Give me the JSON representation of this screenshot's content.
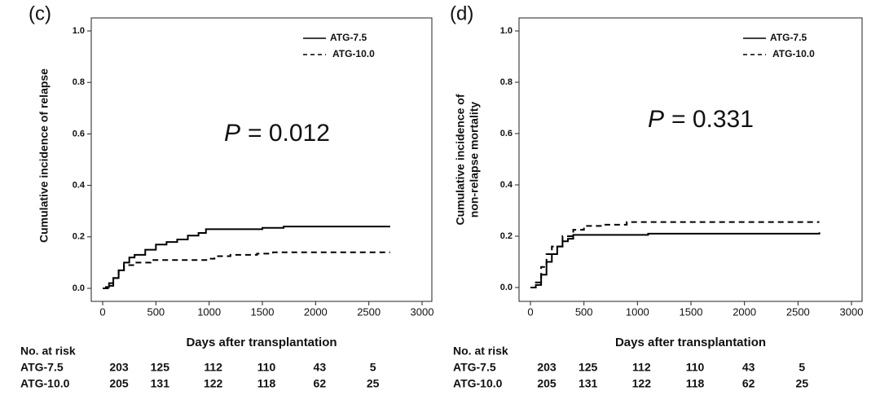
{
  "chart_data": [
    {
      "type": "line",
      "panel": "(c)",
      "ylabel": "Cumulative incidence of relapse",
      "xlabel": "Days after transplantation",
      "annotation_symbol": "P",
      "annotation": "= 0.012",
      "xlim": [
        0,
        3000
      ],
      "xticks": [
        0,
        500,
        1000,
        1500,
        2000,
        2500,
        3000
      ],
      "ylim": [
        0,
        1
      ],
      "yticks": [
        {
          "value": 0,
          "label": "0.0"
        },
        {
          "value": 0.2,
          "label": "0.2"
        },
        {
          "value": 0.4,
          "label": "0.4"
        },
        {
          "value": 0.6,
          "label": "0.6"
        },
        {
          "value": 0.8,
          "label": "0.8"
        },
        {
          "value": 1,
          "label": "1.0"
        }
      ],
      "series": [
        {
          "name": "ATG-7.5",
          "color": "#000000",
          "dash": false,
          "x": [
            0,
            30,
            60,
            100,
            150,
            200,
            250,
            300,
            400,
            500,
            600,
            700,
            800,
            900,
            970,
            1500,
            1700,
            2700
          ],
          "values": [
            0,
            0.005,
            0.02,
            0.04,
            0.07,
            0.1,
            0.12,
            0.13,
            0.15,
            0.17,
            0.18,
            0.19,
            0.205,
            0.215,
            0.23,
            0.235,
            0.24,
            0.24
          ]
        },
        {
          "name": "ATG-10.0",
          "color": "#000000",
          "dash": true,
          "x": [
            0,
            50,
            100,
            150,
            200,
            300,
            450,
            1000,
            1050,
            1200,
            1450,
            1600,
            2700
          ],
          "values": [
            0,
            0.01,
            0.04,
            0.07,
            0.09,
            0.1,
            0.11,
            0.115,
            0.125,
            0.13,
            0.135,
            0.14,
            0.14
          ]
        }
      ],
      "risk_table": {
        "title": "No. at risk",
        "rows": [
          {
            "label": "ATG-7.5",
            "counts": [
              203,
              125,
              112,
              110,
              43,
              5
            ]
          },
          {
            "label": "ATG-10.0",
            "counts": [
              205,
              131,
              122,
              118,
              62,
              25
            ]
          }
        ]
      }
    },
    {
      "type": "line",
      "panel": "(d)",
      "ylabel": "Cumulative incidence of",
      "ylabel2": "non-relapse mortality",
      "xlabel": "Days after transplantation",
      "annotation_symbol": "P",
      "annotation": "= 0.331",
      "xlim": [
        0,
        3000
      ],
      "xticks": [
        0,
        500,
        1000,
        1500,
        2000,
        2500,
        3000
      ],
      "ylim": [
        0,
        1
      ],
      "yticks": [
        {
          "value": 0,
          "label": "0.0"
        },
        {
          "value": 0.2,
          "label": "0.2"
        },
        {
          "value": 0.4,
          "label": "0.4"
        },
        {
          "value": 0.6,
          "label": "0.6"
        },
        {
          "value": 0.8,
          "label": "0.8"
        },
        {
          "value": 1,
          "label": "1.0"
        }
      ],
      "series": [
        {
          "name": "ATG-7.5",
          "color": "#000000",
          "dash": false,
          "x": [
            0,
            50,
            100,
            150,
            200,
            250,
            300,
            350,
            400,
            1000,
            1100,
            2700
          ],
          "values": [
            0,
            0.01,
            0.05,
            0.1,
            0.13,
            0.16,
            0.18,
            0.19,
            0.205,
            0.205,
            0.21,
            0.215
          ]
        },
        {
          "name": "ATG-10.0",
          "color": "#000000",
          "dash": true,
          "x": [
            0,
            50,
            100,
            150,
            200,
            300,
            400,
            500,
            700,
            900,
            2700
          ],
          "values": [
            0,
            0.02,
            0.08,
            0.13,
            0.16,
            0.2,
            0.225,
            0.24,
            0.245,
            0.255,
            0.255
          ]
        }
      ],
      "risk_table": {
        "title": "No. at risk",
        "rows": [
          {
            "label": "ATG-7.5",
            "counts": [
              203,
              125,
              112,
              110,
              43,
              5
            ]
          },
          {
            "label": "ATG-10.0",
            "counts": [
              205,
              131,
              122,
              118,
              62,
              25
            ]
          }
        ]
      }
    }
  ]
}
